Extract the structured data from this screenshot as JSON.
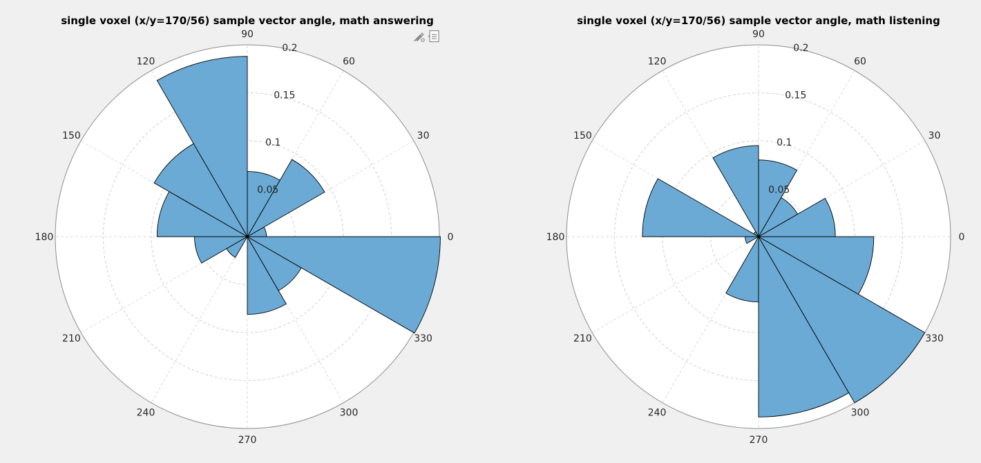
{
  "toolbar": {
    "brush_icon": "brush-icon",
    "legend_icon": "data-tips-icon"
  },
  "chart_data": [
    {
      "type": "polar-histogram",
      "title": "single voxel (x/y=170/56) sample vector angle, math answering",
      "rlim": [
        0,
        0.2
      ],
      "rticks": [
        0.05,
        0.1,
        0.15,
        0.2
      ],
      "rtick_labels": [
        "0.05",
        "0.1",
        "0.15",
        "0.2"
      ],
      "theta_ticks": [
        0,
        30,
        60,
        90,
        120,
        150,
        180,
        210,
        240,
        270,
        300,
        330
      ],
      "theta_tick_labels": [
        "0",
        "30",
        "60",
        "90",
        "120",
        "150",
        "180",
        "210",
        "240",
        "270",
        "300",
        "330"
      ],
      "bin_width_deg": 30,
      "bin_edges_deg": [
        0,
        30,
        60,
        90,
        120,
        150,
        180,
        210,
        240,
        270,
        300,
        330,
        360
      ],
      "values": [
        0.02,
        0.093,
        0.068,
        0.188,
        0.112,
        0.094,
        0.055,
        0.025,
        0.0,
        0.081,
        0.065,
        0.201
      ],
      "face_color": "#6aaad5",
      "edge_color": "#000000",
      "grid": true
    },
    {
      "type": "polar-histogram",
      "title": "single voxel (x/y=170/56) sample vector angle, math listening",
      "rlim": [
        0,
        0.2
      ],
      "rticks": [
        0.05,
        0.1,
        0.15,
        0.2
      ],
      "rtick_labels": [
        "0.05",
        "0.1",
        "0.15",
        "0.2"
      ],
      "theta_ticks": [
        0,
        30,
        60,
        90,
        120,
        150,
        180,
        210,
        240,
        270,
        300,
        330
      ],
      "theta_tick_labels": [
        "0",
        "30",
        "60",
        "90",
        "120",
        "150",
        "180",
        "210",
        "240",
        "270",
        "300",
        "330"
      ],
      "bin_width_deg": 30,
      "bin_edges_deg": [
        0,
        30,
        60,
        90,
        120,
        150,
        180,
        210,
        240,
        270,
        300,
        330,
        360
      ],
      "values": [
        0.08,
        0.047,
        0.08,
        0.095,
        0.006,
        0.121,
        0.014,
        0.0,
        0.068,
        0.188,
        0.2,
        0.12
      ],
      "face_color": "#6aaad5",
      "edge_color": "#000000",
      "grid": true
    }
  ]
}
